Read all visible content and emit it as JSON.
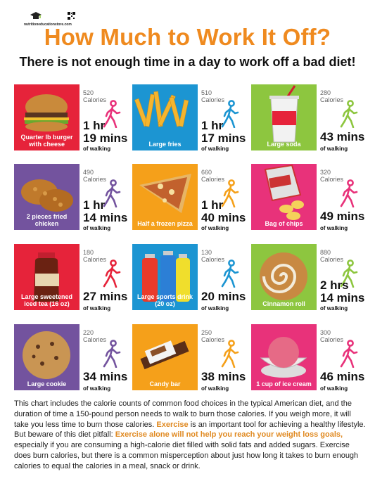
{
  "logo": {
    "site": "nutritioneducationstore.com",
    "icon": "graduation-cap-icon",
    "qr_icon": "qr-code-icon"
  },
  "title": "How Much to Work It Off?",
  "subtitle": "There is not enough time in a day to work off a bad diet!",
  "colors": {
    "title": "#ef8a1f",
    "red": "#e6233a",
    "blue": "#1c95d2",
    "green": "#8dc63f",
    "purple": "#73539e",
    "orange": "#f5a01a",
    "pink": "#e8327a"
  },
  "items": [
    {
      "food": "Quarter lb burger with cheese",
      "calories": "520",
      "calories_label": "Calories",
      "time_a": "1 hr",
      "time_b": "19 mins",
      "walking": "of walking",
      "tile_color": "#e6233a",
      "walker_color": "#e8327a"
    },
    {
      "food": "Large fries",
      "calories": "510",
      "calories_label": "Calories",
      "time_a": "1 hr",
      "time_b": "17 mins",
      "walking": "of walking",
      "tile_color": "#1c95d2",
      "walker_color": "#1c95d2"
    },
    {
      "food": "Large soda",
      "calories": "280",
      "calories_label": "Calories",
      "time_a": "",
      "time_b": "43 mins",
      "walking": "of walking",
      "tile_color": "#8dc63f",
      "walker_color": "#8dc63f"
    },
    {
      "food": "2 pieces fried chicken",
      "calories": "490",
      "calories_label": "Calories",
      "time_a": "1 hr",
      "time_b": "14 mins",
      "walking": "of walking",
      "tile_color": "#73539e",
      "walker_color": "#73539e"
    },
    {
      "food": "Half a frozen pizza",
      "calories": "660",
      "calories_label": "Calories",
      "time_a": "1 hr",
      "time_b": "40 mins",
      "walking": "of walking",
      "tile_color": "#f5a01a",
      "walker_color": "#f5a01a"
    },
    {
      "food": "Bag of chips",
      "calories": "320",
      "calories_label": "Calories",
      "time_a": "",
      "time_b": "49 mins",
      "walking": "of walking",
      "tile_color": "#e8327a",
      "walker_color": "#e8327a"
    },
    {
      "food": "Large sweetened iced tea (16 oz)",
      "calories": "180",
      "calories_label": "Calories",
      "time_a": "",
      "time_b": "27 mins",
      "walking": "of walking",
      "tile_color": "#e6233a",
      "walker_color": "#e6233a"
    },
    {
      "food": "Large sports drink (20 oz)",
      "calories": "130",
      "calories_label": "Calories",
      "time_a": "",
      "time_b": "20 mins",
      "walking": "of walking",
      "tile_color": "#1c95d2",
      "walker_color": "#1c95d2"
    },
    {
      "food": "Cinnamon roll",
      "calories": "880",
      "calories_label": "Calories",
      "time_a": "2 hrs",
      "time_b": "14 mins",
      "walking": "of walking",
      "tile_color": "#8dc63f",
      "walker_color": "#8dc63f"
    },
    {
      "food": "Large cookie",
      "calories": "220",
      "calories_label": "Calories",
      "time_a": "",
      "time_b": "34 mins",
      "walking": "of walking",
      "tile_color": "#73539e",
      "walker_color": "#73539e"
    },
    {
      "food": "Candy bar",
      "calories": "250",
      "calories_label": "Calories",
      "time_a": "",
      "time_b": "38 mins",
      "walking": "of walking",
      "tile_color": "#f5a01a",
      "walker_color": "#f5a01a"
    },
    {
      "food": "1 cup of ice cream",
      "calories": "300",
      "calories_label": "Calories",
      "time_a": "",
      "time_b": "46 mins",
      "walking": "of walking",
      "tile_color": "#e8327a",
      "walker_color": "#e8327a"
    }
  ],
  "body": {
    "p1": "This chart includes the calorie counts of common food choices in the typical American diet, and the duration of time a 150-pound person needs to walk to burn those calories. If you weigh more, it will take you less time to burn those calories. ",
    "hl1": "Exercise",
    "p2": " is an important tool for achieving a healthy lifestyle. But beware of this diet pitfall: ",
    "hl2": "Exercise alone will not help you reach your weight loss goals,",
    "p3": " especially if you are consuming a high-calorie diet filled with solid fats and added sugars. Exercise does burn calories, but there is a common misperception about just how long it takes to burn enough calories to equal the calories in a meal, snack or drink."
  }
}
